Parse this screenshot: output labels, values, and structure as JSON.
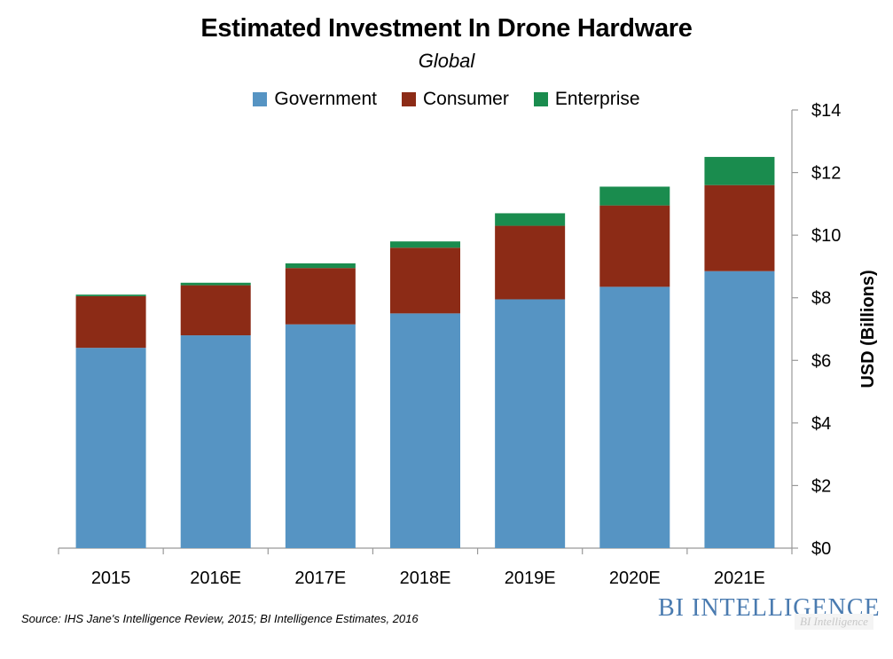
{
  "chart_data": {
    "type": "bar",
    "stacked": true,
    "title": "Estimated Investment In Drone Hardware",
    "subtitle": "Global",
    "categories": [
      "2015",
      "2016E",
      "2017E",
      "2018E",
      "2019E",
      "2020E",
      "2021E"
    ],
    "series": [
      {
        "name": "Government",
        "color": "#5694c3",
        "values": [
          6.4,
          6.8,
          7.15,
          7.5,
          7.95,
          8.35,
          8.85
        ]
      },
      {
        "name": "Consumer",
        "color": "#8c2b16",
        "values": [
          1.65,
          1.6,
          1.8,
          2.1,
          2.35,
          2.6,
          2.75
        ]
      },
      {
        "name": "Enterprise",
        "color": "#1a8c4e",
        "values": [
          0.05,
          0.08,
          0.15,
          0.2,
          0.4,
          0.6,
          0.9
        ]
      }
    ],
    "ylabel": "USD (Billions)",
    "ylim": [
      0,
      14
    ],
    "yticks": [
      0,
      2,
      4,
      6,
      8,
      10,
      12,
      14
    ],
    "ytick_labels": [
      "$0",
      "$2",
      "$4",
      "$6",
      "$8",
      "$10",
      "$12",
      "$14"
    ],
    "y_axis_position": "right",
    "legend_position": "top-center",
    "grid": false
  },
  "source": "Source: IHS Jane's Intelligence Review, 2015; BI Intelligence Estimates, 2016",
  "brand": "BI INTELLIGENCE",
  "brand_watermark": "BI Intelligence"
}
